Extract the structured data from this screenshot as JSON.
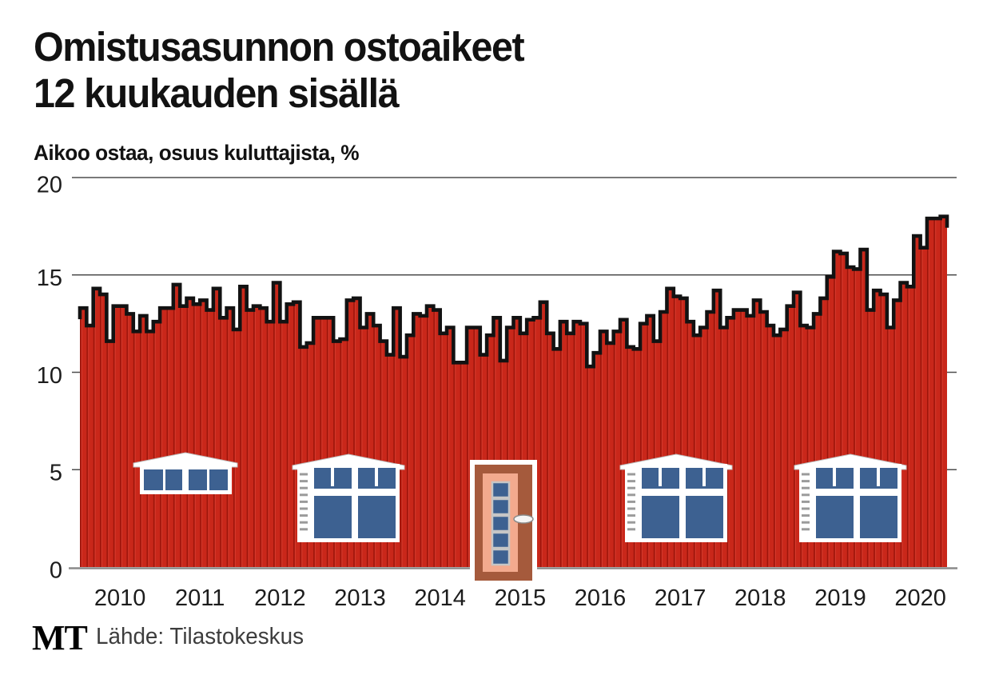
{
  "header": {
    "title_line1": "Omistusasunnon ostoaikeet",
    "title_line2": "12 kuukauden sisällä",
    "subtitle": "Aikoo ostaa, osuus kuluttajista, %"
  },
  "footer": {
    "logo": "MT",
    "source": "Lähde: Tilastokeskus"
  },
  "chart_data": {
    "type": "area",
    "title": "Omistusasunnon ostoaikeet 12 kuukauden sisällä",
    "ylabel": "Aikoo ostaa, osuus kuluttajista, %",
    "frequency": "monthly",
    "x_start": "2010-01",
    "x_end": "2020-10",
    "year_labels": [
      "2010",
      "2011",
      "2012",
      "2013",
      "2014",
      "2015",
      "2016",
      "2017",
      "2018",
      "2019",
      "2020"
    ],
    "yticks": [
      0,
      5,
      10,
      15,
      20
    ],
    "ylim": [
      0,
      20
    ],
    "grid": "horizontal",
    "legend": "none",
    "illustration": "stepped area drawn as a red wooden cottage with four windows and a front door",
    "values": [
      13.3,
      12.4,
      14.3,
      14.0,
      11.6,
      13.4,
      13.4,
      13.0,
      12.1,
      12.9,
      12.1,
      12.6,
      13.3,
      13.3,
      14.5,
      13.4,
      13.8,
      13.5,
      13.7,
      13.2,
      14.3,
      12.8,
      13.3,
      12.2,
      14.4,
      13.2,
      13.4,
      13.3,
      12.6,
      14.6,
      12.6,
      13.5,
      13.6,
      11.3,
      11.5,
      12.8,
      12.8,
      12.8,
      11.6,
      11.7,
      13.7,
      13.8,
      12.3,
      13.0,
      12.4,
      11.6,
      10.9,
      13.3,
      10.8,
      11.9,
      13.0,
      12.9,
      13.4,
      13.2,
      12.0,
      12.3,
      10.5,
      10.5,
      12.3,
      12.3,
      10.9,
      11.9,
      12.8,
      10.6,
      12.3,
      12.8,
      12.0,
      12.7,
      12.8,
      13.6,
      12.0,
      11.2,
      12.6,
      12.0,
      12.6,
      12.5,
      10.3,
      11.0,
      12.1,
      11.5,
      12.1,
      12.7,
      11.3,
      11.2,
      12.5,
      12.9,
      11.6,
      13.1,
      14.3,
      13.9,
      13.8,
      12.6,
      11.9,
      12.3,
      13.1,
      14.2,
      12.3,
      12.8,
      13.2,
      13.2,
      12.9,
      13.7,
      13.1,
      12.4,
      11.9,
      12.2,
      13.4,
      14.1,
      12.4,
      12.3,
      13.0,
      13.8,
      14.9,
      16.2,
      16.1,
      15.4,
      15.3,
      16.3,
      13.2,
      14.2,
      14.0,
      12.3,
      13.7,
      14.6,
      14.4,
      17.0,
      16.4,
      17.9,
      17.9,
      18.0
    ],
    "colors": {
      "wall_red": "#c9271a",
      "plank_dark": "#9e150b",
      "plank_light": "#d63b2d",
      "outline_black": "#121212",
      "window_blue": "#3d6191",
      "trim_white": "#ffffff",
      "door_brown": "#a55a3c",
      "door_salmon": "#f3aa8e",
      "grid_gray": "#4d4d4d",
      "baseline_gray": "#8a8a8a"
    }
  }
}
